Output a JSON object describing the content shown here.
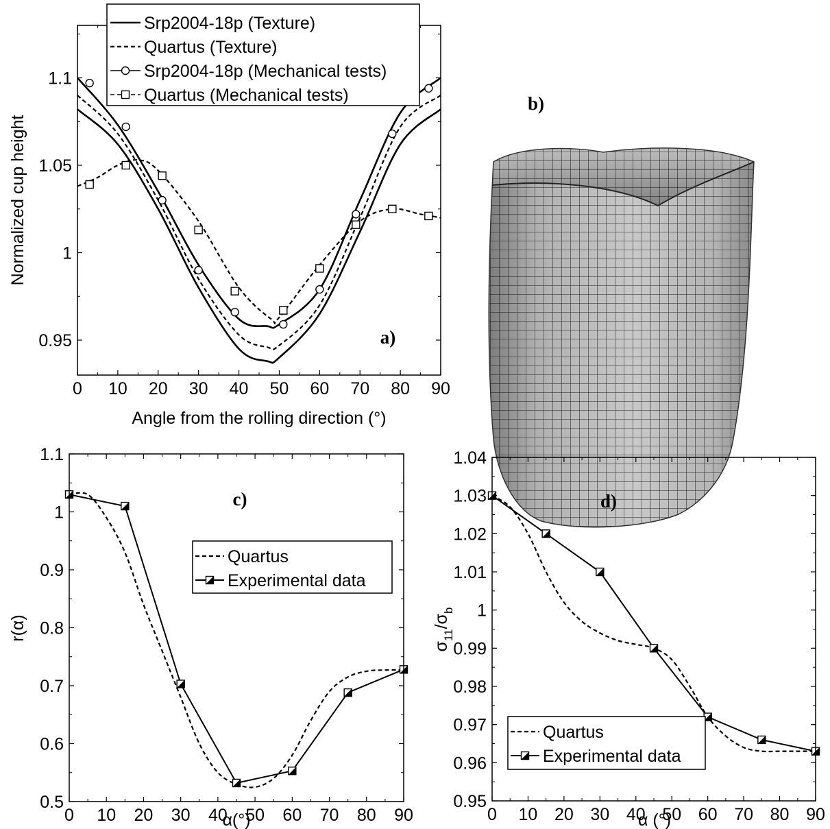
{
  "chart_data": [
    {
      "panel": "a)",
      "type": "line",
      "xlabel": "Angle from the rolling direction (°)",
      "ylabel": "Normalized cup height",
      "xlim": [
        0,
        90
      ],
      "ylim": [
        0.93,
        1.13
      ],
      "xticks": [
        0,
        10,
        20,
        30,
        40,
        50,
        60,
        70,
        80,
        90
      ],
      "yticks": [
        0.95,
        1,
        1.05,
        1.1
      ],
      "ytick_labels": [
        "0.95",
        "1",
        "1.05",
        "1.1"
      ],
      "legend_position": "top-center",
      "series": [
        {
          "name": "Srp2004-18p (Texture)",
          "style": "solid",
          "group": "srp",
          "x": [
            0,
            10,
            20,
            30,
            40,
            47,
            50,
            60,
            70,
            80,
            90
          ],
          "y": [
            1.1,
            1.073,
            1.035,
            0.993,
            0.962,
            0.958,
            0.959,
            0.979,
            1.03,
            1.08,
            1.1
          ]
        },
        {
          "name": "",
          "style": "solid",
          "group": "srp",
          "x": [
            0,
            10,
            20,
            30,
            40,
            47,
            50,
            60,
            70,
            80,
            90
          ],
          "y": [
            1.082,
            1.062,
            1.025,
            0.98,
            0.945,
            0.938,
            0.94,
            0.965,
            1.012,
            1.062,
            1.082
          ]
        },
        {
          "name": "Quartus (Texture)",
          "style": "dashed",
          "group": "quartus",
          "x": [
            0,
            10,
            20,
            30,
            40,
            47,
            50,
            60,
            70,
            80,
            90
          ],
          "y": [
            1.09,
            1.068,
            1.03,
            0.985,
            0.953,
            0.946,
            0.947,
            0.97,
            1.02,
            1.072,
            1.09
          ]
        },
        {
          "name": "",
          "style": "dashed",
          "group": "quartus",
          "x": [
            0,
            5,
            10,
            15,
            20,
            30,
            40,
            48,
            50,
            60,
            70,
            78,
            85,
            90
          ],
          "y": [
            1.038,
            1.043,
            1.05,
            1.053,
            1.047,
            1.018,
            0.98,
            0.962,
            0.963,
            0.993,
            1.018,
            1.025,
            1.022,
            1.02
          ]
        },
        {
          "name": "Srp2004-18p (Mechanical tests)",
          "style": "markers",
          "marker": "circle",
          "x": [
            3,
            12,
            21,
            30,
            39,
            51,
            60,
            69,
            78,
            87
          ],
          "y": [
            1.097,
            1.072,
            1.03,
            0.99,
            0.966,
            0.959,
            0.979,
            1.022,
            1.068,
            1.094
          ]
        },
        {
          "name": "Quartus (Mechanical tests)",
          "style": "markers",
          "marker": "square",
          "x": [
            3,
            12,
            21,
            30,
            39,
            51,
            60,
            69,
            78,
            87
          ],
          "y": [
            1.039,
            1.05,
            1.044,
            1.013,
            0.978,
            0.967,
            0.991,
            1.016,
            1.025,
            1.021
          ]
        }
      ]
    },
    {
      "panel": "c)",
      "type": "line",
      "xlabel": "α(°)",
      "ylabel": "r(α)",
      "xlim": [
        0,
        90
      ],
      "ylim": [
        0.5,
        1.1
      ],
      "xticks": [
        0,
        10,
        20,
        30,
        40,
        50,
        60,
        70,
        80,
        90
      ],
      "yticks": [
        0.5,
        0.6,
        0.7,
        0.8,
        0.9,
        1,
        1.1
      ],
      "ytick_labels": [
        "0.5",
        "0.6",
        "0.7",
        "0.8",
        "0.9",
        "1",
        "1.1"
      ],
      "legend_position": "center-right",
      "series": [
        {
          "name": "Quartus",
          "style": "dashed",
          "x": [
            0,
            5,
            10,
            15,
            20,
            25,
            30,
            35,
            40,
            45,
            50,
            55,
            60,
            65,
            70,
            75,
            80,
            85,
            90
          ],
          "y": [
            1.03,
            1.03,
            0.99,
            0.93,
            0.84,
            0.76,
            0.68,
            0.6,
            0.55,
            0.53,
            0.525,
            0.54,
            0.58,
            0.64,
            0.69,
            0.715,
            0.725,
            0.727,
            0.727
          ]
        },
        {
          "name": "Experimental data",
          "style": "solid",
          "marker": "half-square",
          "x": [
            0,
            15,
            30,
            45,
            60,
            75,
            90
          ],
          "y": [
            1.03,
            1.01,
            0.703,
            0.532,
            0.553,
            0.688,
            0.728
          ]
        }
      ]
    },
    {
      "panel": "d)",
      "type": "line",
      "xlabel": "α (°)",
      "ylabel_main": "σ",
      "ylabel_sub1": "11",
      "ylabel_mid": "/σ",
      "ylabel_sub2": "b",
      "xlim": [
        0,
        90
      ],
      "ylim": [
        0.95,
        1.04
      ],
      "xticks": [
        0,
        10,
        20,
        30,
        40,
        50,
        60,
        70,
        80,
        90
      ],
      "yticks": [
        0.95,
        0.96,
        0.97,
        0.98,
        0.99,
        1,
        1.01,
        1.02,
        1.03,
        1.04
      ],
      "ytick_labels": [
        "0.95",
        "0.96",
        "0.97",
        "0.98",
        "0.99",
        "1",
        "1.01",
        "1.02",
        "1.03",
        "1.04"
      ],
      "legend_position": "bottom-left",
      "series": [
        {
          "name": "Quartus",
          "style": "dashed",
          "x": [
            0,
            5,
            10,
            15,
            20,
            25,
            30,
            35,
            40,
            45,
            50,
            55,
            60,
            65,
            70,
            75,
            80,
            85,
            90
          ],
          "y": [
            1.03,
            1.027,
            1.02,
            1.01,
            1.002,
            0.997,
            0.994,
            0.992,
            0.991,
            0.99,
            0.987,
            0.98,
            0.972,
            0.967,
            0.964,
            0.963,
            0.963,
            0.963,
            0.963
          ]
        },
        {
          "name": "Experimental data",
          "style": "solid",
          "marker": "half-square",
          "x": [
            0,
            15,
            30,
            45,
            60,
            75,
            90
          ],
          "y": [
            1.03,
            1.02,
            1.01,
            0.99,
            0.972,
            0.966,
            0.963
          ]
        }
      ]
    }
  ],
  "cup_panel": {
    "label": "b)"
  }
}
